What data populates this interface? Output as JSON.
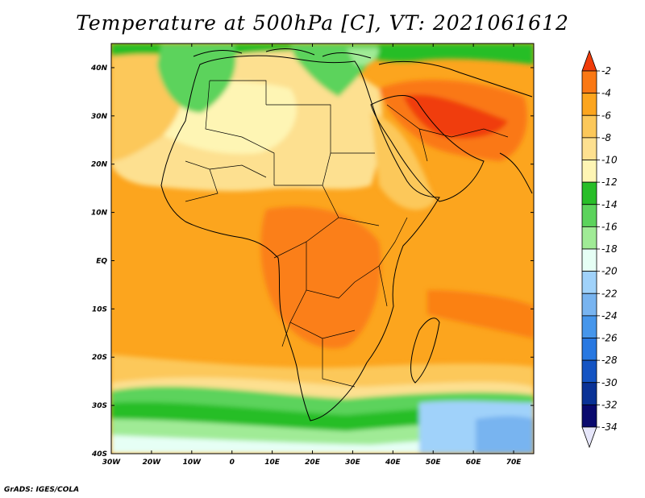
{
  "title": "Temperature at 500hPa [C], VT: 2021061612",
  "credit": "GrADS: IGES/COLA",
  "map": {
    "lat_range": [
      -40,
      45
    ],
    "lon_range": [
      -30,
      75
    ],
    "lat_ticks": [
      "40N",
      "30N",
      "20N",
      "10N",
      "EQ",
      "10S",
      "20S",
      "30S",
      "40S"
    ],
    "lon_ticks": [
      "30W",
      "20W",
      "10W",
      "0",
      "10E",
      "20E",
      "30E",
      "40E",
      "50E",
      "60E",
      "70E"
    ],
    "field": "temperature at 500hPa",
    "units": "C"
  },
  "colorbar": {
    "levels": [
      "-2",
      "-4",
      "-6",
      "-8",
      "-10",
      "-12",
      "-14",
      "-16",
      "-18",
      "-20",
      "-22",
      "-24",
      "-26",
      "-28",
      "-30",
      "-32",
      "-34"
    ],
    "colors": [
      "#f03c0a",
      "#fa7814",
      "#fca51e",
      "#fcc85a",
      "#fde090",
      "#fef5b4",
      "#28be28",
      "#5cd35c",
      "#a0eb96",
      "#e6fff5",
      "#a0d2fa",
      "#78b4f0",
      "#4696eb",
      "#2878e1",
      "#1454c3",
      "#0a3296",
      "#0a0a6e",
      "#e6e6fa"
    ]
  }
}
